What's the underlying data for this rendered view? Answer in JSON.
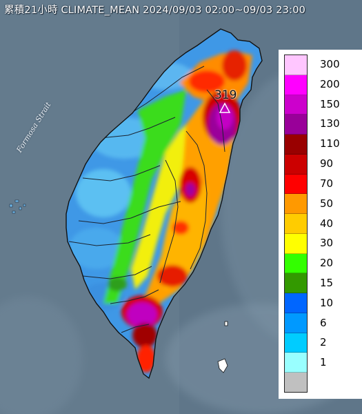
{
  "header": {
    "title": "累積21小時 CLIMATE_MEAN 2024/09/03 02:00~09/03 23:00"
  },
  "map": {
    "sea_label": "Formosa Strait",
    "max_station_value": "319"
  },
  "legend": {
    "unit_levels": [
      {
        "label": "300",
        "color": "#ffc6ff"
      },
      {
        "label": "200",
        "color": "#ff00ff"
      },
      {
        "label": "150",
        "color": "#cc00cc"
      },
      {
        "label": "130",
        "color": "#990099"
      },
      {
        "label": "110",
        "color": "#990000"
      },
      {
        "label": "90",
        "color": "#cc0000"
      },
      {
        "label": "70",
        "color": "#ff0000"
      },
      {
        "label": "50",
        "color": "#ff9900"
      },
      {
        "label": "40",
        "color": "#ffcc00"
      },
      {
        "label": "30",
        "color": "#ffff00"
      },
      {
        "label": "20",
        "color": "#33ff00"
      },
      {
        "label": "15",
        "color": "#339900"
      },
      {
        "label": "10",
        "color": "#0066ff"
      },
      {
        "label": "6",
        "color": "#0099ff"
      },
      {
        "label": "2",
        "color": "#00ccff"
      },
      {
        "label": "1",
        "color": "#99ffff"
      },
      {
        "label": "",
        "color": "#c0c0c0"
      }
    ]
  },
  "colors": {
    "ocean": "#5d7386",
    "ocean_light": "#8aa3b8",
    "max_marker": "#a000a0"
  }
}
